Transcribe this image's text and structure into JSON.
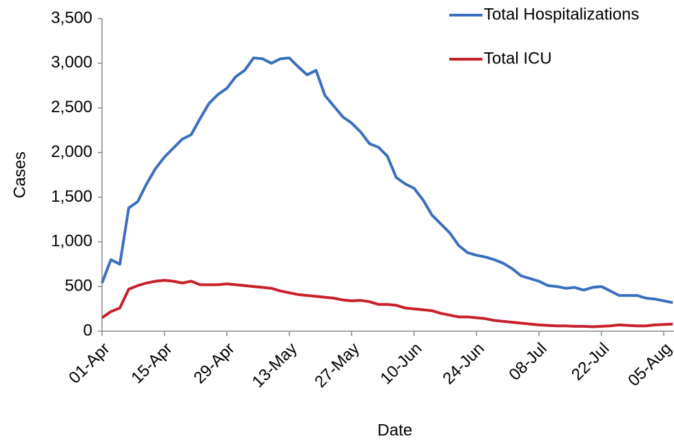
{
  "chart_data": {
    "type": "line",
    "x_label": "Date",
    "y_label": "Cases",
    "categories": [
      "01-Apr",
      null,
      null,
      null,
      null,
      null,
      null,
      "15-Apr",
      null,
      null,
      null,
      null,
      null,
      null,
      "29-Apr",
      null,
      null,
      null,
      null,
      null,
      null,
      "13-May",
      null,
      null,
      null,
      null,
      null,
      null,
      "27-May",
      null,
      null,
      null,
      null,
      null,
      null,
      "10-Jun",
      null,
      null,
      null,
      null,
      null,
      null,
      "24-Jun",
      null,
      null,
      null,
      null,
      null,
      null,
      "08-Jul",
      null,
      null,
      null,
      null,
      null,
      null,
      "22-Jul",
      null,
      null,
      null,
      null,
      null,
      null,
      "05-Aug",
      null
    ],
    "series": [
      {
        "name": "Total Hospitalizations",
        "color": "#3a6fbf",
        "values": [
          540,
          800,
          750,
          1380,
          1450,
          1650,
          1820,
          1950,
          2050,
          2150,
          2200,
          2380,
          2550,
          2650,
          2720,
          2850,
          2920,
          3060,
          3050,
          3000,
          3050,
          3060,
          2960,
          2870,
          2920,
          2640,
          2520,
          2400,
          2330,
          2230,
          2100,
          2060,
          1960,
          1720,
          1650,
          1600,
          1470,
          1300,
          1200,
          1100,
          960,
          880,
          850,
          830,
          800,
          760,
          700,
          620,
          590,
          560,
          510,
          500,
          480,
          490,
          460,
          490,
          500,
          450,
          400,
          400,
          400,
          370,
          360,
          340,
          320
        ]
      },
      {
        "name": "Total ICU",
        "color": "#c8202b",
        "values": [
          150,
          220,
          260,
          470,
          510,
          540,
          560,
          570,
          560,
          540,
          560,
          520,
          520,
          520,
          530,
          520,
          510,
          500,
          490,
          480,
          450,
          430,
          410,
          400,
          390,
          380,
          370,
          350,
          340,
          345,
          330,
          300,
          300,
          290,
          260,
          250,
          240,
          230,
          200,
          180,
          160,
          160,
          150,
          140,
          120,
          110,
          100,
          90,
          80,
          70,
          65,
          60,
          60,
          55,
          55,
          50,
          55,
          60,
          70,
          65,
          60,
          60,
          70,
          75,
          80
        ]
      }
    ],
    "ylim": [
      0,
      3500
    ],
    "yticks": [
      0,
      500,
      {
        "value": 1000,
        "label": "1,000"
      },
      {
        "value": 1500,
        "label": "1,500"
      },
      {
        "value": 2000,
        "label": "2,000"
      },
      {
        "value": 2500,
        "label": "2,500"
      },
      {
        "value": 3000,
        "label": "3,000"
      },
      {
        "value": 3500,
        "label": "3,500"
      }
    ],
    "grid": false
  }
}
